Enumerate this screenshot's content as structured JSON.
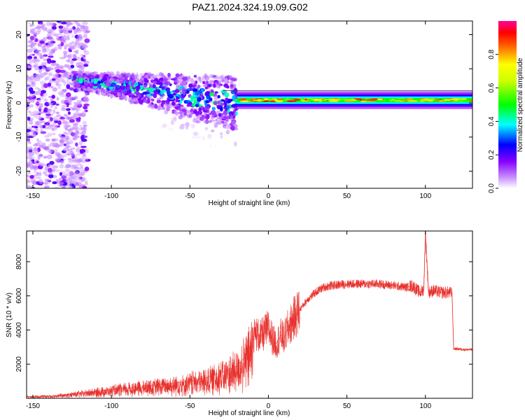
{
  "figure": {
    "title": "PAZ1.2024.324.19.09.G02"
  },
  "chart_data": [
    {
      "type": "heatmap",
      "title": "PAZ1.2024.324.19.09.G02",
      "xlabel": "Height of straight line (km)",
      "ylabel": "Frequency (Hz)",
      "xlim": [
        -154,
        130
      ],
      "ylim": [
        -25,
        24
      ],
      "x_ticks": [
        -150,
        -100,
        -50,
        0,
        50,
        100
      ],
      "y_ticks": [
        -20,
        -10,
        0,
        10,
        20
      ],
      "colorbar": {
        "label": "Normalized spectral amplitude",
        "range": [
          0,
          1
        ],
        "ticks": [
          0.0,
          0.2,
          0.4,
          0.6,
          0.8
        ],
        "colors": [
          "#ffffff",
          "#8800ff",
          "#0000ff",
          "#00ffff",
          "#00ff00",
          "#ffff00",
          "#ff0000",
          "#ff00aa"
        ]
      },
      "features": [
        {
          "name": "",
          "x_range": [
            -154,
            -125
          ],
          "freq_range": [
            -25,
            24
          ],
          "amplitude": 0.08
        },
        {
          "name": "",
          "x_range": [
            -125,
            -20
          ],
          "freq_center_start": 7,
          "freq_center_end": 0,
          "amplitude": 0.3
        },
        {
          "name": "",
          "x_range": [
            -20,
            130
          ],
          "freq_center": 0.8,
          "amplitude": 0.55
        }
      ],
      "grid": false
    },
    {
      "type": "line",
      "xlabel": "Height of straight line (km)",
      "ylabel": "SNR (10 * v/v)",
      "xlim": [
        -154,
        130
      ],
      "ylim": [
        0,
        9800
      ],
      "x_ticks": [
        -150,
        -100,
        -50,
        0,
        50,
        100
      ],
      "y_ticks": [
        2000,
        4000,
        6000,
        8000
      ],
      "color": "#e8312d",
      "series": [
        {
          "name": "",
          "x": [
            -154,
            -140,
            -130,
            -120,
            -110,
            -100,
            -90,
            -80,
            -70,
            -60,
            -50,
            -40,
            -30,
            -20,
            -15,
            -12,
            -10,
            -8,
            -5,
            -2,
            0,
            3,
            5,
            8,
            10,
            12,
            15,
            20,
            25,
            30,
            35,
            40,
            50,
            60,
            70,
            80,
            88,
            92,
            95,
            97,
            99,
            100,
            102,
            105,
            110,
            115,
            117,
            118,
            120,
            125,
            130
          ],
          "y": [
            100,
            130,
            200,
            300,
            400,
            500,
            600,
            700,
            800,
            900,
            1000,
            1200,
            1500,
            1900,
            2400,
            3000,
            3600,
            3800,
            3600,
            3900,
            4100,
            3400,
            3200,
            3700,
            3500,
            4000,
            4500,
            5200,
            5800,
            6200,
            6500,
            6600,
            6700,
            6700,
            6700,
            6600,
            6500,
            6600,
            6300,
            6200,
            6400,
            9700,
            6200,
            6300,
            6200,
            6200,
            6150,
            2900,
            2900,
            2850,
            2850
          ]
        }
      ],
      "grid": false
    }
  ]
}
